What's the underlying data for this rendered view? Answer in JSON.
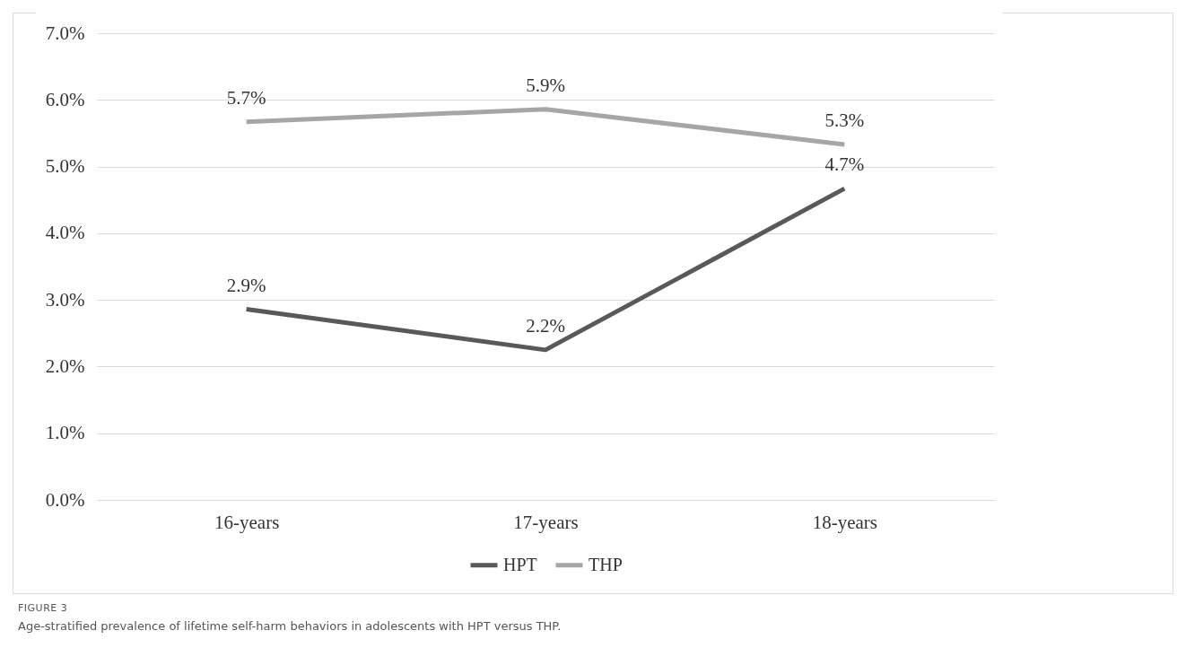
{
  "chart_data": {
    "type": "line",
    "categories": [
      "16-years",
      "17-years",
      "18-years"
    ],
    "series": [
      {
        "name": "HPT",
        "color": "#595959",
        "values": [
          2.86,
          2.25,
          4.67
        ],
        "value_labels": [
          "2.9%",
          "2.2%",
          "4.7%"
        ]
      },
      {
        "name": "THP",
        "color": "#a6a6a6",
        "values": [
          5.67,
          5.86,
          5.33
        ],
        "value_labels": [
          "5.7%",
          "5.9%",
          "5.3%"
        ]
      }
    ],
    "ylim": [
      0,
      7
    ],
    "yticks": [
      {
        "value": 0,
        "label": "0.0%"
      },
      {
        "value": 1,
        "label": "1.0%"
      },
      {
        "value": 2,
        "label": "2.0%"
      },
      {
        "value": 3,
        "label": "3.0%"
      },
      {
        "value": 4,
        "label": "4.0%"
      },
      {
        "value": 5,
        "label": "5.0%"
      },
      {
        "value": 6,
        "label": "6.0%"
      },
      {
        "value": 7,
        "label": "7.0%"
      }
    ],
    "grid": "y",
    "legend": "bottom",
    "marker": "none",
    "line_style": "solid",
    "annotations": [
      "FIGURE 3",
      "Age-stratified prevalence of lifetime self-harm behaviors in adolescents with HPT versus THP."
    ]
  }
}
